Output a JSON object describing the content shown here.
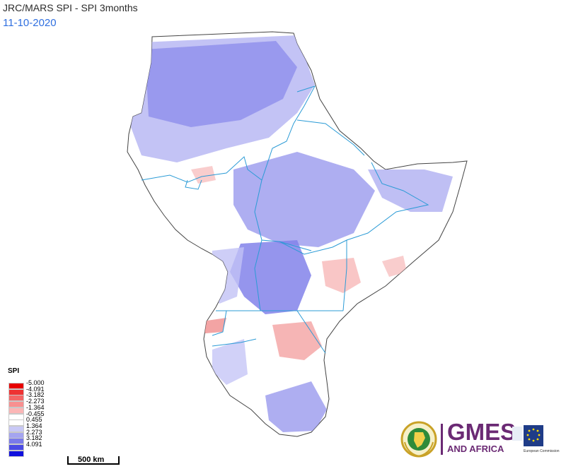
{
  "header": {
    "title": "JRC/MARS SPI - SPI 3months",
    "date": "11-10-2020"
  },
  "legend": {
    "title": "SPI",
    "entries": [
      {
        "label": "-5.000",
        "color": "#e60000"
      },
      {
        "label": "-4.091",
        "color": "#ee3333"
      },
      {
        "label": "-3.182",
        "color": "#f46666"
      },
      {
        "label": "-2.273",
        "color": "#f89090"
      },
      {
        "label": "-1.364",
        "color": "#fbb6b6"
      },
      {
        "label": "-0.455",
        "color": "#ffffff"
      },
      {
        "label": "0.455",
        "color": "#ffffff"
      },
      {
        "label": "1.364",
        "color": "#c8c8f6"
      },
      {
        "label": "2.273",
        "color": "#a4a4f0"
      },
      {
        "label": "3.182",
        "color": "#7a7aea"
      },
      {
        "label": "4.091",
        "color": "#4a4ae4"
      },
      {
        "label": "",
        "color": "#1010dd"
      }
    ]
  },
  "scalebar": {
    "label": "500 km"
  },
  "logos": {
    "gmes": "GMES",
    "gmes_sub": "AND AFRICA",
    "ec_text": "European Commission"
  },
  "colors": {
    "border": "#2b9bd6",
    "outline": "#444444",
    "wet": "#8a8aee",
    "wet_light": "#c6c6f6",
    "dry": "#f6b4b4"
  }
}
